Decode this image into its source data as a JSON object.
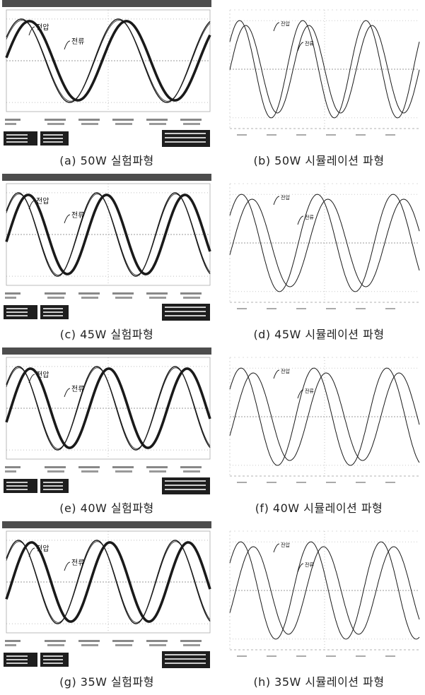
{
  "panels": [
    {
      "id": "a",
      "kind": "exp",
      "caption": "(a) 50W 실험파형",
      "v_label": "전압",
      "i_label": "전류",
      "phase_deg": 30,
      "v_amp": 1.0,
      "i_amp": 0.95,
      "cycles": 2.1
    },
    {
      "id": "b",
      "kind": "sim",
      "caption": "(b) 50W 시뮬레이션 파형",
      "v_label": "전압",
      "i_label": "전류",
      "phase_deg": 35,
      "v_amp": 1.0,
      "i_amp": 0.9,
      "cycles": 3.0
    },
    {
      "id": "c",
      "kind": "exp",
      "caption": "(c) 45W 실험파형",
      "v_label": "전압",
      "i_label": "전류",
      "phase_deg": 45,
      "v_amp": 1.0,
      "i_amp": 0.95,
      "cycles": 2.6
    },
    {
      "id": "d",
      "kind": "sim",
      "caption": "(d) 45W 시뮬레이션 파형",
      "v_label": "전압",
      "i_label": "전류",
      "phase_deg": 50,
      "v_amp": 1.0,
      "i_amp": 0.9,
      "cycles": 2.5
    },
    {
      "id": "e",
      "kind": "exp",
      "caption": "(e) 40W 실험파형",
      "v_label": "전압",
      "i_label": "전류",
      "phase_deg": 55,
      "v_amp": 1.0,
      "i_amp": 0.95,
      "cycles": 2.6
    },
    {
      "id": "f",
      "kind": "sim",
      "caption": "(f) 40W 시뮬레이션 파형",
      "v_label": "전압",
      "i_label": "전류",
      "phase_deg": 60,
      "v_amp": 1.0,
      "i_amp": 0.9,
      "cycles": 2.6
    },
    {
      "id": "g",
      "kind": "exp",
      "caption": "(g) 35W 실험파형",
      "v_label": "전압",
      "i_label": "전류",
      "phase_deg": 60,
      "v_amp": 1.0,
      "i_amp": 0.95,
      "cycles": 2.6
    },
    {
      "id": "h",
      "kind": "sim",
      "caption": "(h) 35W 시뮬레이션 파형",
      "v_label": "전압",
      "i_label": "전류",
      "phase_deg": 65,
      "v_amp": 1.0,
      "i_amp": 0.9,
      "cycles": 2.7
    }
  ],
  "chart_data": [
    {
      "type": "line",
      "series": [
        {
          "name": "전압",
          "values": "sin"
        },
        {
          "name": "전류",
          "values": "sin, lagging"
        }
      ],
      "title": ""
    }
  ],
  "colors": {
    "exp_header": "#4d4d4d",
    "exp_footer": "#1e1e1e",
    "wave": "#1a1a1a",
    "grid": "#777777"
  }
}
